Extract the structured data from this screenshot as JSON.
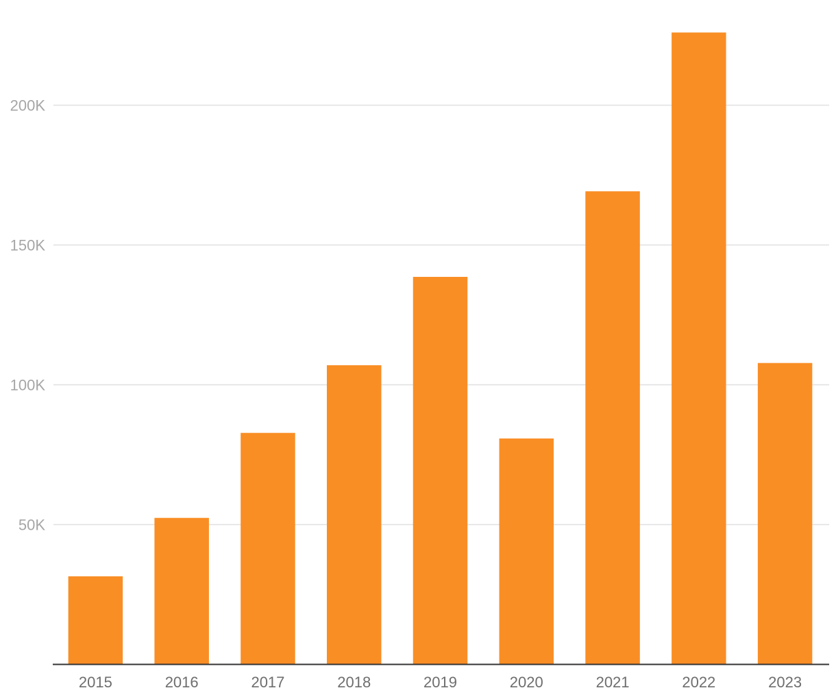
{
  "chart_data": {
    "type": "bar",
    "title": "",
    "xlabel": "",
    "ylabel": "",
    "categories": [
      "2015",
      "2016",
      "2017",
      "2018",
      "2019",
      "2020",
      "2021",
      "2022",
      "2023"
    ],
    "series": [
      {
        "values": [
          31500,
          52400,
          82800,
          107000,
          138600,
          80800,
          169200,
          226000,
          107800
        ],
        "color": "#F98E25"
      }
    ],
    "ylim": [
      0,
      226000
    ],
    "yticks": [
      50000,
      100000,
      150000,
      200000
    ],
    "ytick_labels": [
      "50K",
      "100K",
      "150K",
      "200K"
    ],
    "grid": true,
    "legend": "none"
  }
}
